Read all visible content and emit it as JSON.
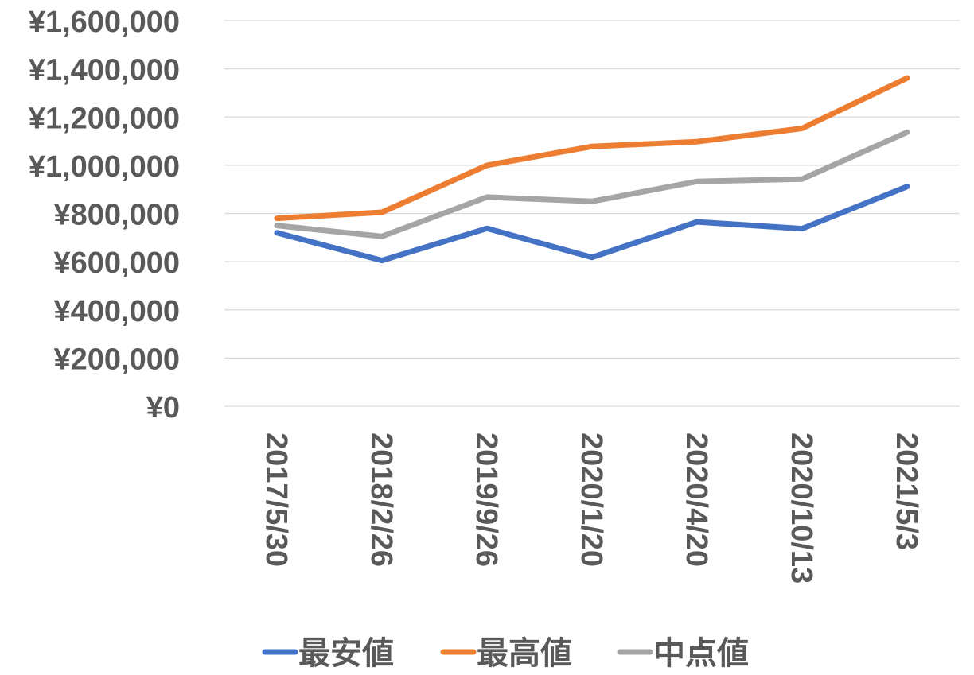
{
  "chart_data": {
    "type": "line",
    "title": "",
    "xlabel": "",
    "ylabel": "",
    "categories": [
      "2017/5/30",
      "2018/2/26",
      "2019/9/26",
      "2020/1/20",
      "2020/4/20",
      "2020/10/13",
      "2021/5/3"
    ],
    "y_ticks": [
      0,
      200000,
      400000,
      600000,
      800000,
      1000000,
      1200000,
      1400000,
      1600000
    ],
    "y_tick_labels": [
      "¥0",
      "¥200,000",
      "¥400,000",
      "¥600,000",
      "¥800,000",
      "¥1,000,000",
      "¥1,200,000",
      "¥1,400,000",
      "¥1,600,000"
    ],
    "ylim": [
      0,
      1600000
    ],
    "grid": true,
    "legend_position": "bottom",
    "series": [
      {
        "name": "最安値",
        "color": "#4472C4",
        "values": [
          720000,
          605000,
          738000,
          618000,
          765000,
          737000,
          912000
        ]
      },
      {
        "name": "最高値",
        "color": "#ED7D31",
        "values": [
          780000,
          805000,
          1000000,
          1078000,
          1098000,
          1153000,
          1362000
        ]
      },
      {
        "name": "中点値",
        "color": "#A5A5A5",
        "values": [
          750000,
          705000,
          868000,
          850000,
          933000,
          943000,
          1137000
        ]
      }
    ]
  }
}
